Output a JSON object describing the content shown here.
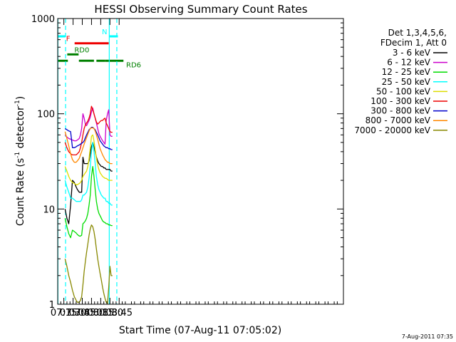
{
  "chart_data": {
    "type": "line",
    "title": "HESSI Observing Summary Count Rates",
    "xlabel": "Start Time (07-Aug-11 07:05:02)",
    "ylabel": "Count Rate (s⁻¹ detector⁻¹)",
    "ylabel_parts": [
      "Count Rate (s",
      "-1",
      " detector",
      "-1",
      ")"
    ],
    "yscale": "log",
    "xlim": [
      425,
      890
    ],
    "ylim": [
      1,
      1000
    ],
    "x_unit": "minutes after 00:00 UT",
    "xticks": [
      {
        "value": 435,
        "label": "07:15"
      },
      {
        "value": 450,
        "label": "07:30"
      },
      {
        "value": 465,
        "label": "07:45"
      },
      {
        "value": 480,
        "label": "08:00"
      },
      {
        "value": 495,
        "label": "08:15"
      },
      {
        "value": 510,
        "label": "08:30"
      },
      {
        "value": 525,
        "label": "08:45"
      }
    ],
    "yticks": [
      {
        "value": 1,
        "label": "1"
      },
      {
        "value": 10,
        "label": "10"
      },
      {
        "value": 100,
        "label": "100"
      },
      {
        "value": 1000,
        "label": "1000"
      }
    ],
    "legend": {
      "position": "right",
      "header": [
        "Det 1,3,4,5,6,",
        "FDecim 1, Att 0"
      ]
    },
    "series": [
      {
        "name": "3 - 6 keV",
        "color": "#000000",
        "x": [
          437,
          440,
          443,
          446,
          449,
          452,
          455,
          457,
          460,
          462,
          464,
          466,
          468,
          470,
          472,
          474,
          476,
          478,
          480,
          482,
          484,
          486,
          488,
          490,
          492,
          494,
          496,
          498,
          500,
          502,
          504,
          506,
          508,
          510,
          512,
          514
        ],
        "y": [
          10,
          8,
          7,
          11,
          20,
          19,
          17,
          16,
          15,
          15,
          15,
          35,
          30,
          30,
          30,
          30,
          32,
          38,
          45,
          50,
          45,
          40,
          35,
          32,
          30,
          29,
          28,
          28,
          27,
          27,
          26,
          26,
          26,
          26,
          25,
          25
        ]
      },
      {
        "name": "6 - 12 keV",
        "color": "#cc00cc",
        "x": [
          437,
          440,
          443,
          446,
          449,
          452,
          455,
          457,
          460,
          462,
          464,
          466,
          468,
          470,
          472,
          474,
          476,
          478,
          480,
          482,
          484,
          486,
          488,
          490,
          492,
          494,
          496,
          498,
          500,
          502,
          504,
          506,
          508,
          510,
          512,
          514
        ],
        "y": [
          60,
          57,
          55,
          54,
          53,
          52,
          52,
          53,
          55,
          60,
          70,
          100,
          90,
          78,
          75,
          80,
          85,
          92,
          105,
          115,
          100,
          90,
          80,
          70,
          62,
          58,
          55,
          52,
          50,
          48,
          85,
          100,
          110,
          60,
          58,
          58
        ]
      },
      {
        "name": "12 - 25 keV",
        "color": "#00dd00",
        "x": [
          437,
          440,
          443,
          446,
          449,
          452,
          455,
          457,
          460,
          462,
          464,
          466,
          468,
          470,
          472,
          474,
          476,
          478,
          480,
          482,
          484,
          486,
          488,
          490,
          492,
          494,
          496,
          498,
          500,
          502,
          504,
          506,
          508,
          510,
          512,
          514
        ],
        "y": [
          8,
          6.5,
          5.5,
          5,
          6,
          5.8,
          5.6,
          5.4,
          5.2,
          5.2,
          5.3,
          7,
          7.2,
          7.5,
          8,
          9,
          11,
          14,
          22,
          28,
          22,
          16,
          12,
          10,
          9,
          8.5,
          8,
          7.5,
          7.3,
          7.2,
          7,
          7,
          6.8,
          6.8,
          6.7,
          6.7
        ]
      },
      {
        "name": "25 - 50 keV",
        "color": "#00ffff",
        "x": [
          437,
          440,
          443,
          446,
          449,
          452,
          455,
          457,
          460,
          462,
          464,
          466,
          468,
          470,
          472,
          474,
          476,
          478,
          480,
          482,
          484,
          486,
          488,
          490,
          492,
          494,
          496,
          498,
          500,
          502,
          504,
          506,
          508,
          510,
          512,
          514
        ],
        "y": [
          20,
          17,
          15,
          13,
          13,
          12.5,
          12,
          12,
          12,
          12,
          12.5,
          14,
          14,
          14.5,
          15,
          17,
          21,
          28,
          40,
          50,
          40,
          30,
          22,
          18,
          16,
          15,
          14,
          13.5,
          13,
          13,
          12,
          12,
          11.5,
          11.5,
          11,
          11
        ]
      },
      {
        "name": "50 - 100 keV",
        "color": "#dddd00",
        "x": [
          437,
          440,
          443,
          446,
          449,
          452,
          455,
          457,
          460,
          462,
          464,
          466,
          468,
          470,
          472,
          474,
          476,
          478,
          480,
          482,
          484,
          486,
          488,
          490,
          492,
          494,
          496,
          498,
          500,
          502,
          504,
          506,
          508,
          510,
          512,
          514
        ],
        "y": [
          28,
          25,
          22,
          20,
          19,
          18.5,
          18,
          18,
          18.5,
          19,
          20,
          22,
          23,
          24,
          25,
          28,
          34,
          44,
          58,
          60,
          52,
          42,
          34,
          29,
          26,
          24,
          23,
          22,
          21.5,
          21,
          21,
          20.5,
          20,
          20,
          20,
          20
        ]
      },
      {
        "name": "100 - 300 keV",
        "color": "#ee0000",
        "x": [
          437,
          440,
          443,
          446,
          449,
          452,
          455,
          457,
          460,
          462,
          464,
          466,
          468,
          470,
          472,
          474,
          476,
          478,
          480,
          482,
          484,
          486,
          488,
          490,
          492,
          494,
          496,
          498,
          500,
          502,
          504,
          506,
          508,
          510,
          512,
          514
        ],
        "y": [
          50,
          44,
          40,
          38,
          37,
          37,
          37,
          38,
          40,
          44,
          50,
          60,
          70,
          76,
          80,
          84,
          90,
          100,
          120,
          110,
          100,
          90,
          82,
          78,
          80,
          83,
          85,
          85,
          88,
          90,
          80,
          75,
          70,
          65,
          64,
          64
        ]
      },
      {
        "name": "300 - 800 keV",
        "color": "#0000cc",
        "x": [
          437,
          440,
          443,
          446,
          449,
          452,
          455,
          457,
          460,
          462,
          464,
          466,
          468,
          470,
          472,
          474,
          476,
          478,
          480,
          482,
          484,
          486,
          488,
          490,
          492,
          494,
          496,
          498,
          500,
          502,
          504,
          506,
          508,
          510,
          512,
          514
        ],
        "y": [
          70,
          68,
          66,
          65,
          44,
          44,
          45,
          46,
          47,
          48,
          49,
          50,
          52,
          56,
          60,
          64,
          68,
          70,
          72,
          72,
          70,
          68,
          64,
          60,
          56,
          52,
          50,
          48,
          46,
          45,
          44,
          44,
          43,
          43,
          42,
          42
        ]
      },
      {
        "name": "800 - 7000 keV",
        "color": "#ff8800",
        "x": [
          437,
          440,
          443,
          446,
          449,
          452,
          455,
          457,
          460,
          462,
          464,
          466,
          468,
          470,
          472,
          474,
          476,
          478,
          480,
          482,
          484,
          486,
          488,
          490,
          492,
          494,
          496,
          498,
          500,
          502,
          504,
          506,
          508,
          510,
          512,
          514
        ],
        "y": [
          65,
          55,
          46,
          38,
          33,
          31,
          31,
          32,
          34,
          37,
          40,
          44,
          48,
          52,
          56,
          61,
          66,
          70,
          71,
          71,
          70,
          66,
          60,
          54,
          48,
          43,
          40,
          37,
          35,
          33,
          32,
          31,
          31,
          30,
          30,
          30
        ]
      },
      {
        "name": "7000 - 20000 keV",
        "color": "#888800",
        "x": [
          437,
          440,
          443,
          446,
          449,
          452,
          455,
          457,
          460,
          462,
          464,
          466,
          468,
          470,
          472,
          474,
          476,
          478,
          480,
          482,
          484,
          486,
          488,
          490,
          492,
          494,
          496,
          498,
          500,
          502,
          504,
          506,
          508,
          510,
          512,
          514
        ],
        "y": [
          3,
          2.5,
          2,
          1.7,
          1.4,
          1.2,
          1.1,
          1.05,
          1.05,
          1.1,
          1.2,
          1.6,
          2.2,
          2.8,
          3.5,
          4.3,
          5.3,
          6.2,
          6.8,
          6.5,
          5.8,
          4.8,
          3.8,
          3,
          2.5,
          2.1,
          1.8,
          1.5,
          1.3,
          1.15,
          1.05,
          1.02,
          1.5,
          2.5,
          2,
          2
        ]
      }
    ],
    "vertical_lines": [
      {
        "x": 425.3,
        "color": "#00ffff",
        "style": "solid"
      },
      {
        "x": 437.8,
        "color": "#00ffff",
        "style": "dashed"
      },
      {
        "x": 508.9,
        "color": "#00ffff",
        "style": "solid"
      },
      {
        "x": 521.2,
        "color": "#00ffff",
        "style": "dashed"
      }
    ],
    "status_bars": [
      {
        "label": "N",
        "color": "#00ffff",
        "y": 650,
        "segments": [
          [
            425,
            437.5
          ],
          [
            509,
            523
          ]
        ]
      },
      {
        "label": "F",
        "color": "#ee0000",
        "y": 550,
        "segments": [
          [
            452.5,
            508
          ]
        ]
      },
      {
        "label": "RD0",
        "color": "#008000",
        "y": 420,
        "segments": [
          [
            440.5,
            459
          ]
        ]
      },
      {
        "label": "RD6",
        "color": "#008000",
        "y": 360,
        "segments": [
          [
            425,
            441.5
          ],
          [
            459.5,
            484
          ],
          [
            488,
            502.5
          ],
          [
            502.5,
            519.5
          ],
          [
            519.5,
            532
          ]
        ]
      }
    ]
  },
  "footer": {
    "timestamp": "7-Aug-2011 07:35"
  }
}
